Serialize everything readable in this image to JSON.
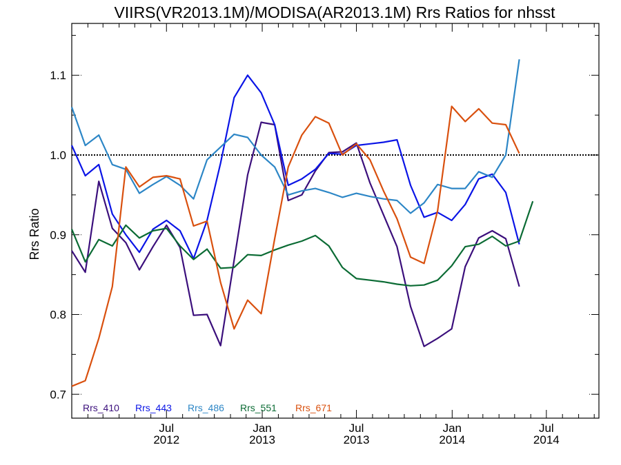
{
  "chart_data": {
    "type": "line",
    "title": "VIIRS(VR2013.1M)/MODISA(AR2013.1M)  Rrs Ratios for nhsst",
    "xlabel": "",
    "ylabel": "Rrs Ratio",
    "xlim": [
      "2012-01-01",
      "2014-10-10"
    ],
    "ylim": [
      0.67,
      1.165
    ],
    "x_ticks": [
      {
        "date": "2012-07-01",
        "line1": "Jul",
        "line2": "2012"
      },
      {
        "date": "2013-01-01",
        "line1": "Jan",
        "line2": "2013"
      },
      {
        "date": "2013-07-01",
        "line1": "Jul",
        "line2": "2013"
      },
      {
        "date": "2014-01-01",
        "line1": "Jan",
        "line2": "2014"
      },
      {
        "date": "2014-07-01",
        "line1": "Jul",
        "line2": "2014"
      }
    ],
    "y_ticks": [
      0.7,
      0.8,
      0.9,
      1.0,
      1.1
    ],
    "y_tick_labels": [
      "0.7",
      "0.8",
      "0.9",
      "1.0",
      "1.1"
    ],
    "reference_line": {
      "y": 1.0,
      "style": "dotted",
      "color": "#000000"
    },
    "grid": false,
    "legend_position": "bottom-left",
    "x": [
      "2012-01-01",
      "2012-01-27",
      "2012-02-22",
      "2012-03-19",
      "2012-04-14",
      "2012-05-10",
      "2012-06-05",
      "2012-07-01",
      "2012-07-27",
      "2012-08-22",
      "2012-09-17",
      "2012-10-13",
      "2012-11-08",
      "2012-12-04",
      "2012-12-30",
      "2013-01-25",
      "2013-02-20",
      "2013-03-18",
      "2013-04-13",
      "2013-05-09",
      "2013-06-04",
      "2013-07-01",
      "2013-07-27",
      "2013-08-22",
      "2013-09-17",
      "2013-10-13",
      "2013-11-08",
      "2013-12-04",
      "2013-12-31",
      "2014-01-26",
      "2014-02-21",
      "2014-03-19",
      "2014-04-14",
      "2014-05-10",
      "2014-06-05",
      "2014-07-01",
      "2014-07-27",
      "2014-08-22",
      "2014-09-17",
      "2014-10-10"
    ],
    "series": [
      {
        "name": "Rrs_410",
        "color": "#3b0f7c",
        "values": [
          0.88,
          0.853,
          0.967,
          0.908,
          0.89,
          0.856,
          0.885,
          0.912,
          0.884,
          0.799,
          0.8,
          0.761,
          0.868,
          0.975,
          1.041,
          1.038,
          0.943,
          0.95,
          0.98,
          1.003,
          1.004,
          1.015,
          0.965,
          0.925,
          0.885,
          0.81,
          0.76,
          0.77,
          0.782,
          0.86,
          0.896,
          0.905,
          0.895,
          0.835,
          null,
          null,
          null,
          null,
          null,
          null
        ]
      },
      {
        "name": "Rrs_443",
        "color": "#0a14e6",
        "values": [
          1.012,
          0.974,
          0.988,
          0.926,
          0.9,
          0.878,
          0.907,
          0.918,
          0.905,
          0.87,
          0.918,
          0.99,
          1.072,
          1.1,
          1.078,
          1.038,
          0.962,
          0.97,
          0.982,
          1.002,
          1.001,
          1.012,
          1.014,
          1.016,
          1.019,
          0.962,
          0.922,
          0.928,
          0.918,
          0.938,
          0.97,
          0.976,
          0.953,
          0.888,
          null,
          null,
          null,
          null,
          null,
          null
        ]
      },
      {
        "name": "Rrs_486",
        "color": "#2c86c6",
        "values": [
          1.06,
          1.012,
          1.025,
          0.988,
          0.982,
          0.952,
          0.963,
          0.973,
          0.962,
          0.945,
          0.994,
          1.01,
          1.026,
          1.022,
          1.0,
          0.985,
          0.95,
          0.955,
          0.958,
          0.953,
          0.947,
          0.952,
          0.948,
          0.945,
          0.943,
          0.927,
          0.94,
          0.963,
          0.958,
          0.958,
          0.979,
          0.972,
          1.0,
          1.12,
          null,
          null,
          null,
          null,
          null,
          null
        ]
      },
      {
        "name": "Rrs_551",
        "color": "#0b6b34",
        "values": [
          0.907,
          0.866,
          0.894,
          0.886,
          0.912,
          0.896,
          0.905,
          0.908,
          0.886,
          0.869,
          0.882,
          0.858,
          0.859,
          0.875,
          0.874,
          0.881,
          0.887,
          0.892,
          0.899,
          0.886,
          0.859,
          0.845,
          0.843,
          0.841,
          0.838,
          0.836,
          0.837,
          0.843,
          0.861,
          0.885,
          0.888,
          0.898,
          0.886,
          0.892,
          0.942,
          null,
          null,
          null,
          null,
          null
        ]
      },
      {
        "name": "Rrs_671",
        "color": "#d9500e",
        "values": [
          0.71,
          0.717,
          0.77,
          0.835,
          0.985,
          0.96,
          0.972,
          0.974,
          0.97,
          0.911,
          0.917,
          0.84,
          0.782,
          0.818,
          0.801,
          0.895,
          0.985,
          1.025,
          1.048,
          1.04,
          1.0,
          1.014,
          0.994,
          0.955,
          0.92,
          0.872,
          0.864,
          0.93,
          1.061,
          1.042,
          1.058,
          1.04,
          1.038,
          1.002,
          null,
          null,
          null,
          null,
          null,
          null
        ]
      }
    ]
  }
}
